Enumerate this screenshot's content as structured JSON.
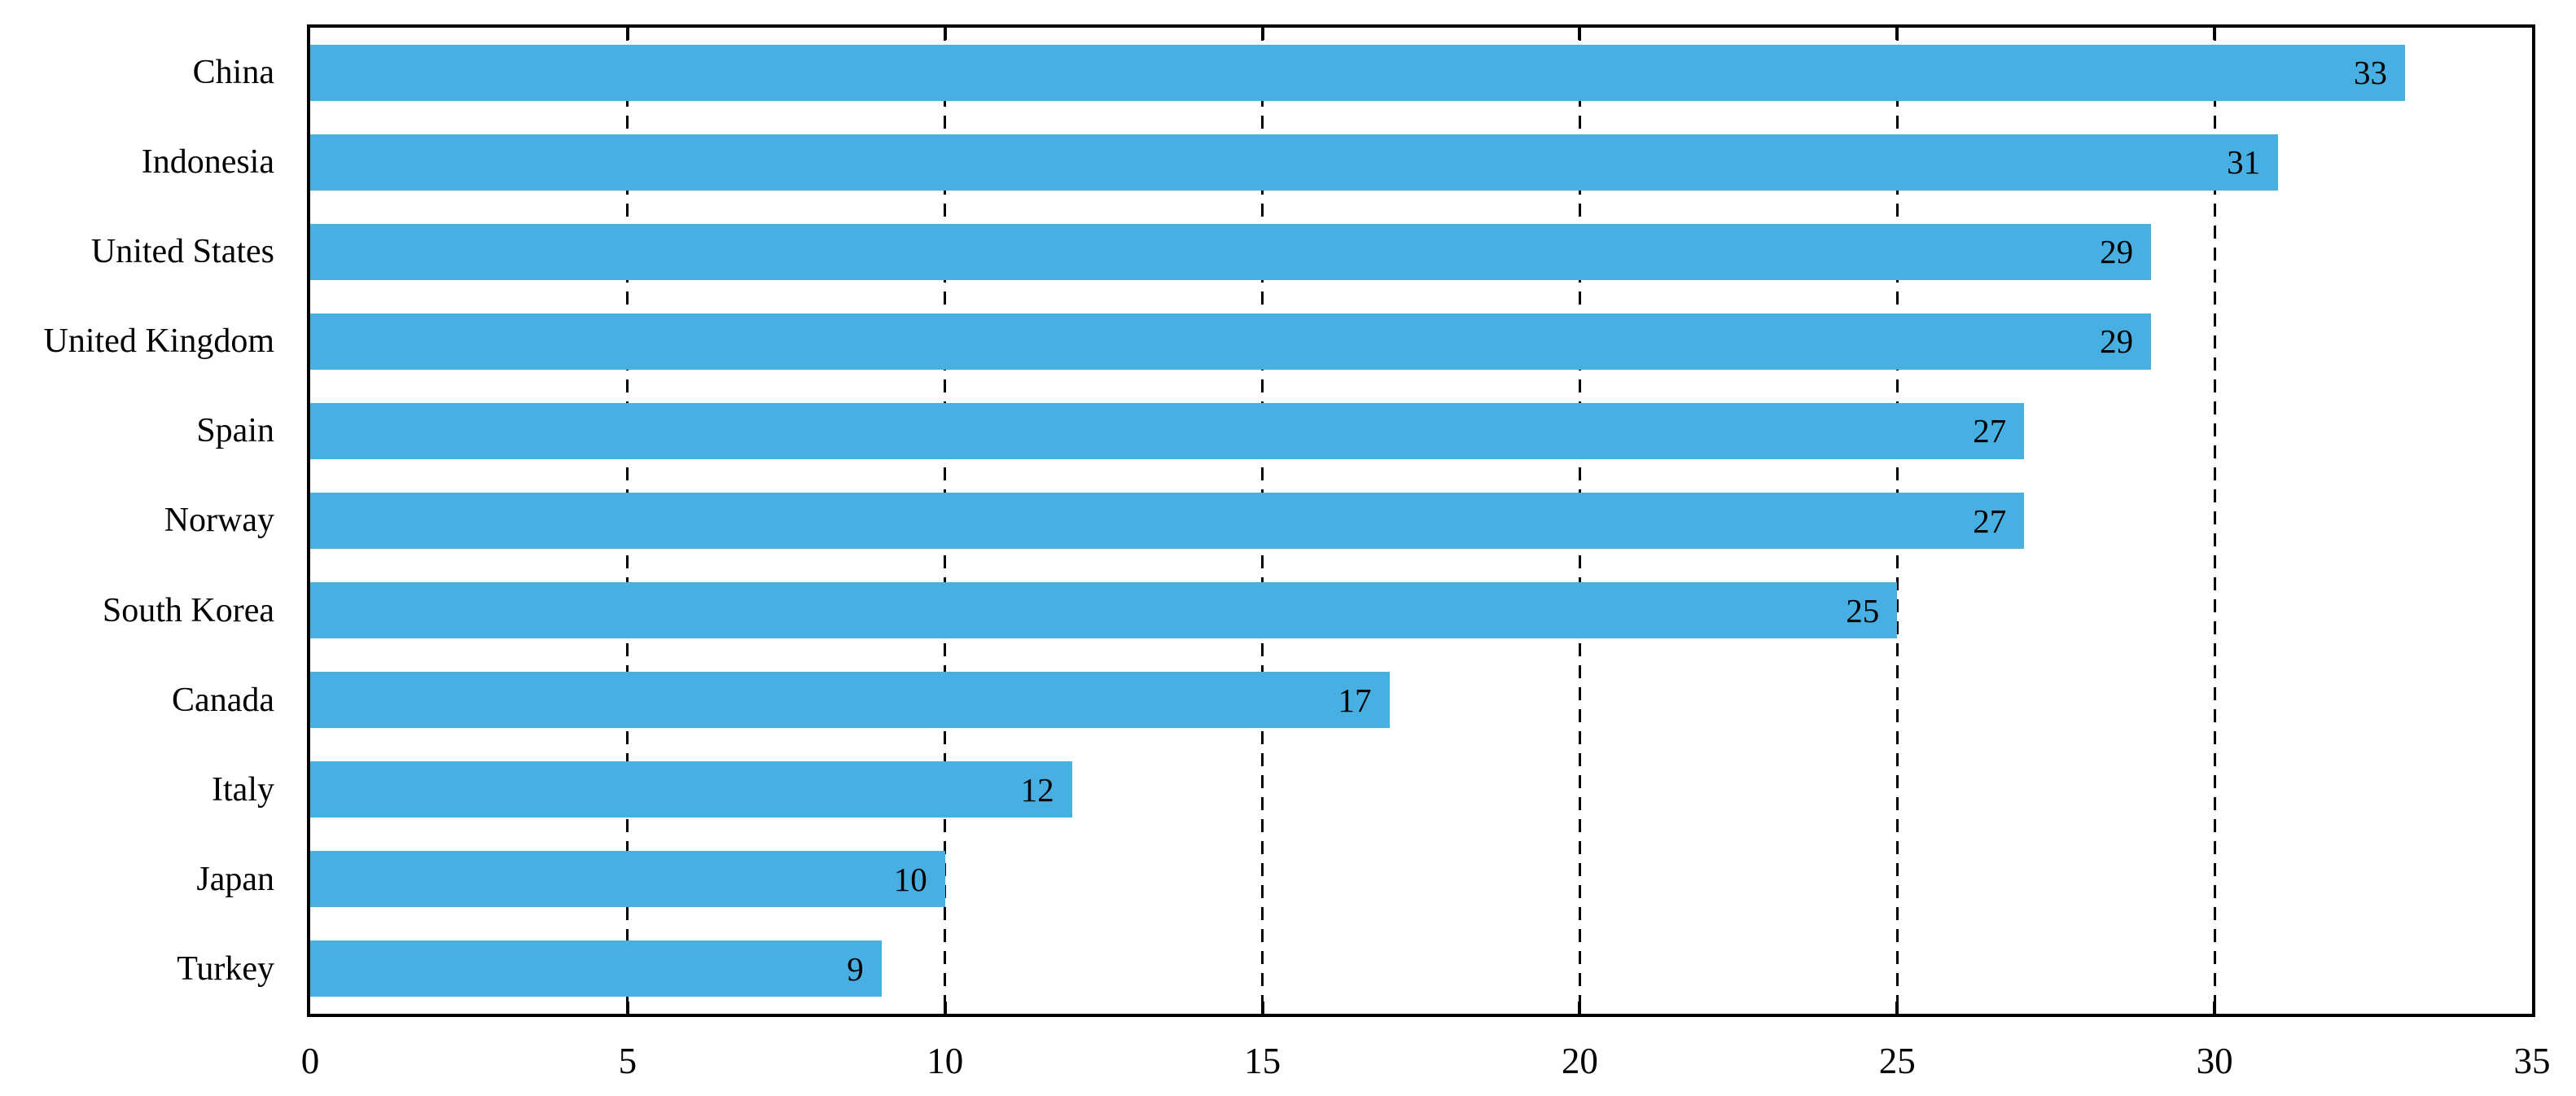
{
  "chart_data": {
    "type": "bar",
    "orientation": "horizontal",
    "title": "",
    "xlabel": "",
    "ylabel": "",
    "categories": [
      "China",
      "Indonesia",
      "United States",
      "United Kingdom",
      "Spain",
      "Norway",
      "South Korea",
      "Canada",
      "Italy",
      "Japan",
      "Turkey"
    ],
    "values": [
      33,
      31,
      29,
      29,
      27,
      27,
      25,
      17,
      12,
      10,
      9
    ],
    "value_labels": [
      "33",
      "31",
      "29",
      "29",
      "27",
      "27",
      "25",
      "17",
      "12",
      "10",
      "9"
    ],
    "xlim": [
      0,
      35
    ],
    "xticks": [
      0,
      5,
      10,
      15,
      20,
      25,
      30,
      35
    ],
    "xtick_labels": [
      "0",
      "5",
      "10",
      "15",
      "20",
      "25",
      "30",
      "35"
    ],
    "grid": "dashed-vertical-behind-bars",
    "legend": "none",
    "bar_color": "#47AFE2",
    "axis_color": "#000000",
    "grid_color": "#000000",
    "text_color": "#000000",
    "value_label_position": "inside-end"
  }
}
